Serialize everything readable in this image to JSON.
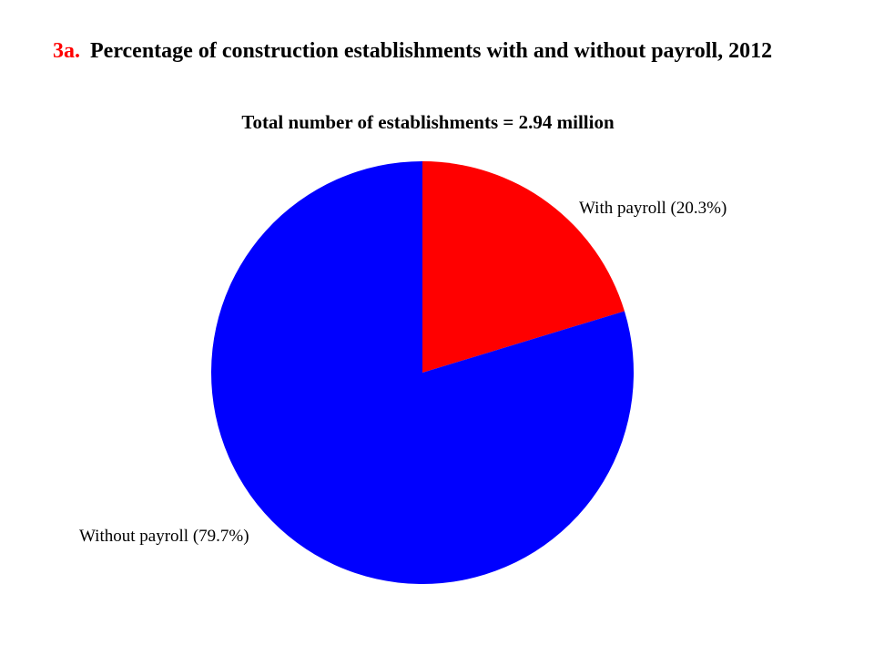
{
  "header": {
    "number": "3a.",
    "title": "Percentage of construction establishments with and without payroll, 2012"
  },
  "chart_data": {
    "type": "pie",
    "subtitle": "Total number of establishments = 2.94 million",
    "slices": [
      {
        "label": "With payroll",
        "value": 20.3,
        "display": "With payroll  (20.3%)",
        "color": "#ff0000"
      },
      {
        "label": "Without payroll",
        "value": 79.7,
        "display": "Without payroll  (79.7%)",
        "color": "#0000ff"
      }
    ]
  }
}
